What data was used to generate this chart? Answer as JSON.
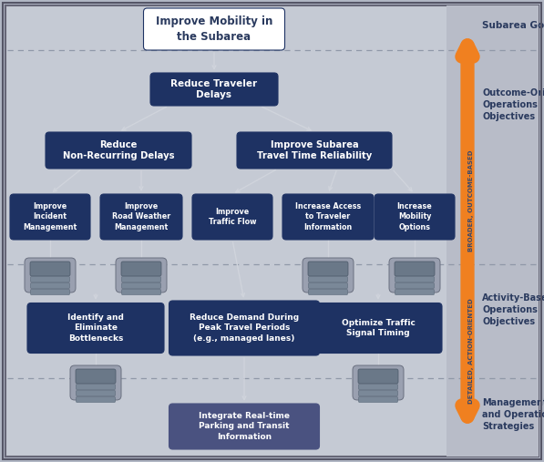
{
  "bg_outer": "#b2b8c5",
  "bg_inner": "#c5cad4",
  "dark_blue": "#1e3263",
  "light_purple": "#4a5280",
  "white": "#ffffff",
  "arrow_color": "#d0d4dc",
  "orange": "#f08020",
  "right_bg": "#b8bcc8",
  "right_text": "#2a3a5e",
  "dashed_color": "#9098a8",
  "icon_body": "#9aa0b0",
  "icon_screen": "#6a7888",
  "icon_row": "#7a8898",
  "title_top": "Improve Mobility in\nthe Subarea",
  "node_reduce_delays": "Reduce Traveler\nDelays",
  "node_non_recurring": "Reduce\nNon-Recurring Delays",
  "node_subarea": "Improve Subarea\nTravel Time Reliability",
  "node_incident": "Improve\nIncident\nManagement",
  "node_road_weather": "Improve\nRoad Weather\nManagement",
  "node_traffic_flow": "Improve\nTraffic Flow",
  "node_traveler_info": "Increase Access\nto Traveler\nInformation",
  "node_mobility": "Increase\nMobility\nOptions",
  "node_bottlenecks": "Identify and\nEliminate\nBottlenecks",
  "node_reduce_demand": "Reduce Demand During\nPeak Travel Periods\n(e.g., managed lanes)",
  "node_optimize": "Optimize Traffic\nSignal Timing",
  "node_integrate": "Integrate Real-time\nParking and Transit\nInformation",
  "lbl_subarea_goals": "Subarea Goals",
  "lbl_outcome": "Outcome-Oriented\nOperations\nObjectives",
  "lbl_activity": "Activity-Based\nOperations\nObjectives",
  "lbl_management": "Management\nand Operations\nStrategies",
  "lbl_broader": "BROADER, OUTCOME-BASED",
  "lbl_detailed": "DETAILED, ACTION-ORIENTED"
}
